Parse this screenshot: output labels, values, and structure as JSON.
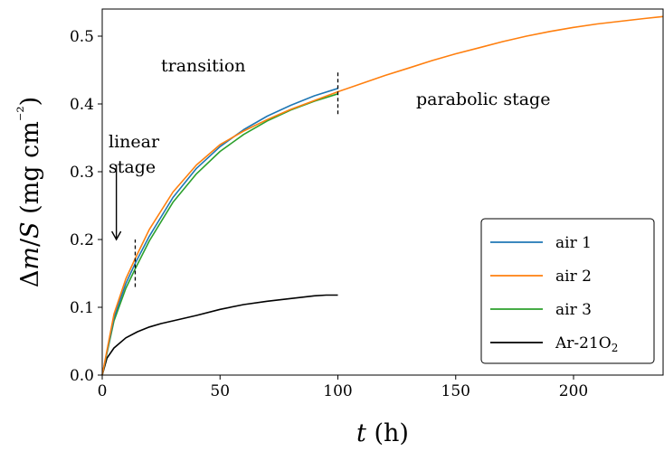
{
  "chart_data": {
    "type": "line",
    "xlabel": "t (h)",
    "ylabel": "Δm/S (mg cm⁻²)",
    "xlim": [
      0,
      238
    ],
    "ylim": [
      0,
      0.54
    ],
    "x_ticks": [
      0,
      50,
      100,
      150,
      200
    ],
    "y_ticks": [
      0.0,
      0.1,
      0.2,
      0.3,
      0.4,
      0.5
    ],
    "grid": false,
    "legend_position": "bottom-right",
    "series": [
      {
        "name": "air 1",
        "color": "#1f77b4",
        "x": [
          0,
          5,
          10,
          14,
          20,
          30,
          40,
          50,
          60,
          70,
          80,
          90,
          100
        ],
        "y": [
          0,
          0.085,
          0.135,
          0.165,
          0.205,
          0.262,
          0.305,
          0.337,
          0.362,
          0.382,
          0.398,
          0.412,
          0.423
        ]
      },
      {
        "name": "air 2",
        "color": "#ff7f0e",
        "x": [
          0,
          5,
          10,
          14,
          20,
          30,
          40,
          50,
          60,
          70,
          80,
          90,
          100,
          110,
          120,
          130,
          140,
          150,
          160,
          170,
          180,
          190,
          200,
          210,
          220,
          230,
          238
        ],
        "y": [
          0,
          0.09,
          0.142,
          0.172,
          0.215,
          0.27,
          0.31,
          0.34,
          0.36,
          0.377,
          0.392,
          0.405,
          0.418,
          0.43,
          0.442,
          0.453,
          0.464,
          0.474,
          0.483,
          0.492,
          0.5,
          0.507,
          0.513,
          0.518,
          0.522,
          0.526,
          0.529
        ]
      },
      {
        "name": "air 3",
        "color": "#2ca02c",
        "x": [
          0,
          5,
          10,
          14,
          20,
          30,
          40,
          50,
          60,
          70,
          80,
          90,
          100
        ],
        "y": [
          0,
          0.08,
          0.128,
          0.157,
          0.198,
          0.255,
          0.297,
          0.33,
          0.355,
          0.375,
          0.391,
          0.404,
          0.415
        ]
      },
      {
        "name": "Ar-21O₂",
        "color": "#000000",
        "x": [
          0,
          2,
          5,
          10,
          15,
          20,
          25,
          30,
          40,
          50,
          60,
          70,
          80,
          90,
          95,
          100
        ],
        "y": [
          0,
          0.025,
          0.04,
          0.055,
          0.064,
          0.071,
          0.076,
          0.08,
          0.088,
          0.097,
          0.104,
          0.109,
          0.113,
          0.117,
          0.118,
          0.118
        ]
      }
    ],
    "annotations": {
      "transition": "transition",
      "parabolic": "parabolic stage",
      "linear_line1": "linear",
      "linear_line2": "stage"
    },
    "vertical_markers": [
      {
        "x": 14,
        "y_range": [
          0.13,
          0.2
        ]
      },
      {
        "x": 100,
        "y_range": [
          0.385,
          0.45
        ]
      }
    ],
    "arrow": {
      "x": 6,
      "y_from": 0.31,
      "y_to": 0.2
    }
  }
}
